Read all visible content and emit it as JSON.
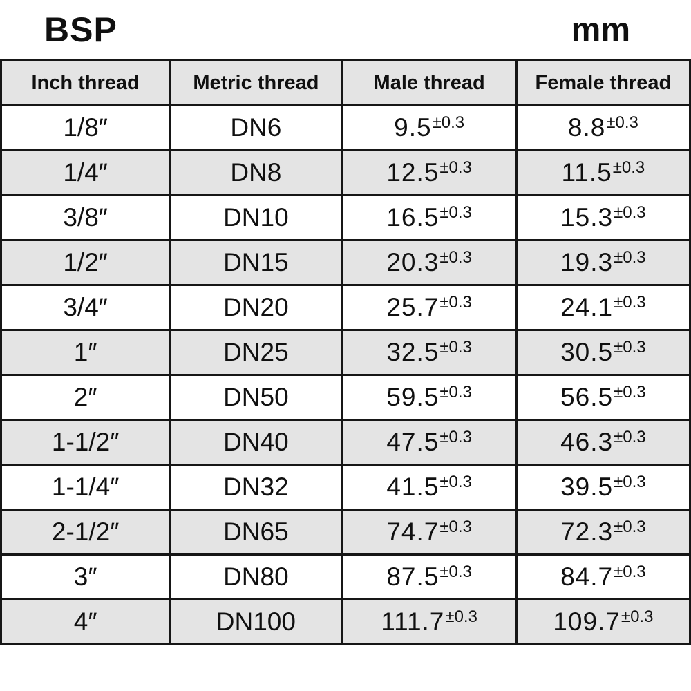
{
  "page": {
    "title_left": "BSP",
    "title_right": "mm"
  },
  "colors": {
    "stripe": "#e4e4e4",
    "border": "#161616",
    "text": "#101010",
    "background": "#ffffff"
  },
  "chart_data": {
    "type": "table",
    "title": "BSP",
    "unit": "mm",
    "columns": [
      "Inch thread",
      "Metric thread",
      "Male thread",
      "Female thread"
    ],
    "tolerance": "±0.3",
    "rows": [
      [
        "1/8″",
        "DN6",
        "9.5",
        "8.8"
      ],
      [
        "1/4″",
        "DN8",
        "12.5",
        "11.5"
      ],
      [
        "3/8″",
        "DN10",
        "16.5",
        "15.3"
      ],
      [
        "1/2″",
        "DN15",
        "20.3",
        "19.3"
      ],
      [
        "3/4″",
        "DN20",
        "25.7",
        "24.1"
      ],
      [
        "1″",
        "DN25",
        "32.5",
        "30.5"
      ],
      [
        "2″",
        "DN50",
        "59.5",
        "56.5"
      ],
      [
        "1-1/2″",
        "DN40",
        "47.5",
        "46.3"
      ],
      [
        "1-1/4″",
        "DN32",
        "41.5",
        "39.5"
      ],
      [
        "2-1/2″",
        "DN65",
        "74.7",
        "72.3"
      ],
      [
        "3″",
        "DN80",
        "87.5",
        "84.7"
      ],
      [
        "4″",
        "DN100",
        "111.7",
        "109.7"
      ]
    ]
  }
}
